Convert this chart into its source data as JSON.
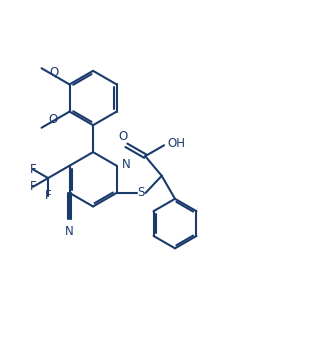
{
  "bg_color": "#ffffff",
  "line_color": "#1a3a6b",
  "line_width": 1.5,
  "font_size": 8.5,
  "figsize": [
    3.22,
    3.5
  ],
  "dpi": 100,
  "xlim": [
    0.0,
    10.5
  ],
  "ylim": [
    -0.5,
    11.0
  ]
}
